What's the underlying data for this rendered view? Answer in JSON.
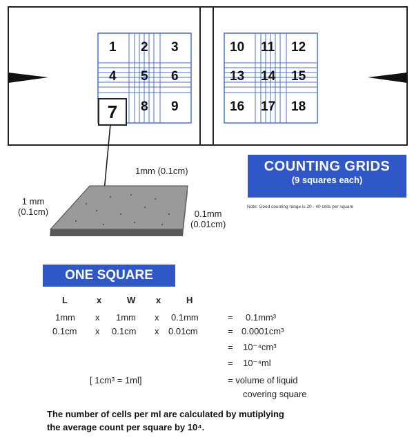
{
  "slide": {
    "grid_left_numbers": [
      "1",
      "2",
      "3",
      "4",
      "5",
      "6",
      "7",
      "8",
      "9"
    ],
    "grid_right_numbers": [
      "10",
      "11",
      "12",
      "13",
      "14",
      "15",
      "16",
      "17",
      "18"
    ],
    "callout_number": "7"
  },
  "dimensions": {
    "top": "1mm (0.1cm)",
    "left_line1": "1 mm",
    "left_line2": "(0.1cm)",
    "right_line1": "0.1mm",
    "right_line2": "(0.01cm)"
  },
  "counting_grids": {
    "title": "COUNTING GRIDS",
    "subtitle": "(9 squares each)",
    "note": "Note: Good counting range is 20 - 40 cells per square"
  },
  "one_square": {
    "title": "ONE SQUARE",
    "header": [
      "L",
      "x",
      "W",
      "x",
      "H"
    ],
    "row1": [
      "1mm",
      "x",
      "1mm",
      "x",
      "0.1mm",
      "=",
      "0.1mm³"
    ],
    "row2": [
      "0.1cm",
      "x",
      "0.1cm",
      "x",
      "0.01cm",
      "=",
      "0.0001cm³"
    ],
    "row3": [
      "=",
      "10⁻⁴cm³"
    ],
    "row4": [
      "=",
      "10⁻⁴ml"
    ],
    "conversion": "[ 1cm³ = 1ml]",
    "row5_line1": "= volume of liquid",
    "row5_line2": "covering square"
  },
  "footer": {
    "line1": "The number of cells per ml are calculated by mutiplying",
    "line2": "the average count per square by 10⁴."
  }
}
